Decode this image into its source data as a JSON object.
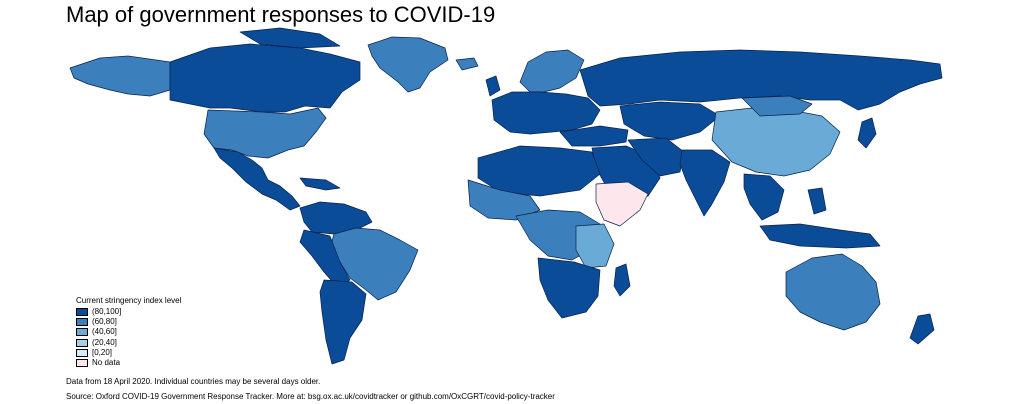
{
  "title": "Map of government responses to COVID-19",
  "legend": {
    "title": "Current stringency index level",
    "items": [
      {
        "label": "(80,100]",
        "color": "#0b4c99"
      },
      {
        "label": "(60,80]",
        "color": "#3b7fbd"
      },
      {
        "label": "(40,60]",
        "color": "#6aaad6"
      },
      {
        "label": "(20,40]",
        "color": "#a9cde7"
      },
      {
        "label": "[0,20]",
        "color": "#dbe9f6"
      },
      {
        "label": "No data",
        "color": "#fde6ec"
      }
    ]
  },
  "note": "Data from 18 April 2020. Individual countries may be several days older.",
  "source": "Source: Oxford COVID-19 Government Response Tracker. More at: bsg.ox.ac.uk/covidtracker or github.com/OxCGRT/covid-policy-tracker"
}
